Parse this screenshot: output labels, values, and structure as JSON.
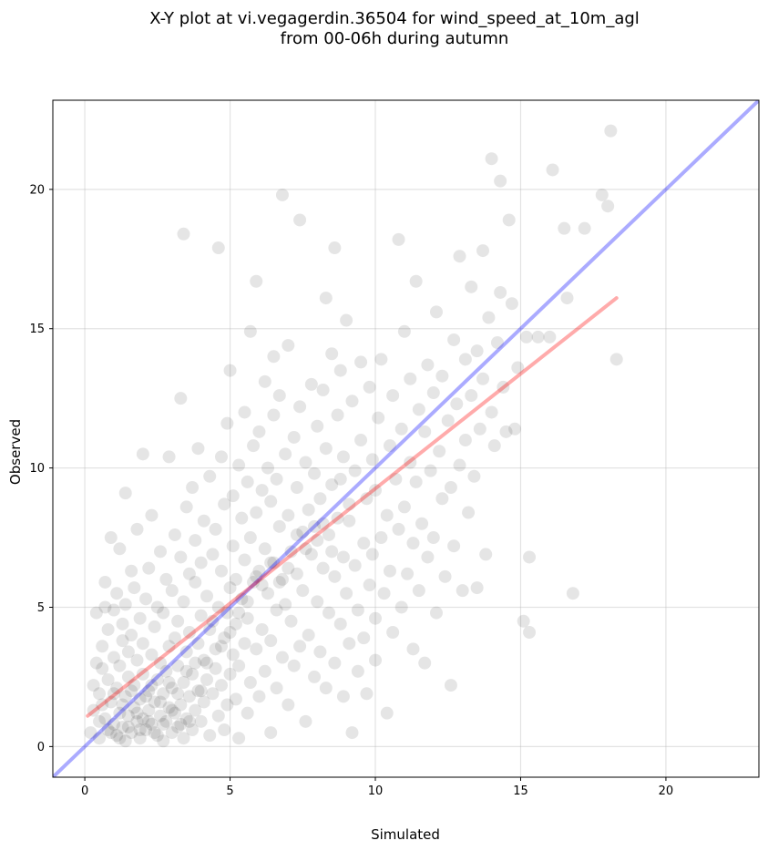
{
  "chart_data": {
    "type": "scatter",
    "title_line1": "X-Y plot at vi.vegagerdin.36504 for wind_speed_at_10m_agl",
    "title_line2": "from 00-06h during autumn",
    "xlabel": "Simulated",
    "ylabel": "Observed",
    "xlim": [
      -1.1,
      23.2
    ],
    "ylim": [
      -1.1,
      23.2
    ],
    "xticks": [
      0,
      5,
      10,
      15,
      20
    ],
    "yticks": [
      0,
      5,
      10,
      15,
      20
    ],
    "grid": true,
    "point_color": "#000000",
    "point_alpha": 0.1,
    "reference_line": {
      "name": "1:1",
      "color": "#0000ff",
      "alpha": 0.33,
      "x": [
        -1.1,
        23.2
      ],
      "y": [
        -1.1,
        23.2
      ]
    },
    "fit_line": {
      "name": "fit",
      "color": "#ff0000",
      "alpha": 0.33,
      "x": [
        0.1,
        18.3
      ],
      "y": [
        1.1,
        16.1
      ]
    },
    "points": [
      [
        0.2,
        0.5
      ],
      [
        0.3,
        1.3
      ],
      [
        0.3,
        2.2
      ],
      [
        0.4,
        3.0
      ],
      [
        0.4,
        4.8
      ],
      [
        0.5,
        0.3
      ],
      [
        0.5,
        1.9
      ],
      [
        0.6,
        2.8
      ],
      [
        0.6,
        3.6
      ],
      [
        0.7,
        1.0
      ],
      [
        0.7,
        5.0
      ],
      [
        0.7,
        5.9
      ],
      [
        0.8,
        0.6
      ],
      [
        0.8,
        2.4
      ],
      [
        0.8,
        4.2
      ],
      [
        0.9,
        7.5
      ],
      [
        0.9,
        1.6
      ],
      [
        1.0,
        0.8
      ],
      [
        1.0,
        3.2
      ],
      [
        1.0,
        4.9
      ],
      [
        1.1,
        0.4
      ],
      [
        1.1,
        2.1
      ],
      [
        1.1,
        5.5
      ],
      [
        1.2,
        1.2
      ],
      [
        1.2,
        2.9
      ],
      [
        1.2,
        7.1
      ],
      [
        1.3,
        0.7
      ],
      [
        1.3,
        3.8
      ],
      [
        1.3,
        4.4
      ],
      [
        1.4,
        0.2
      ],
      [
        1.4,
        1.8
      ],
      [
        1.4,
        5.1
      ],
      [
        1.4,
        9.1
      ],
      [
        1.5,
        1.1
      ],
      [
        1.5,
        2.5
      ],
      [
        1.5,
        3.4
      ],
      [
        1.6,
        0.5
      ],
      [
        1.6,
        4.0
      ],
      [
        1.6,
        6.3
      ],
      [
        1.7,
        1.4
      ],
      [
        1.7,
        2.2
      ],
      [
        1.7,
        5.7
      ],
      [
        1.8,
        0.9
      ],
      [
        1.8,
        3.1
      ],
      [
        1.8,
        7.8
      ],
      [
        1.9,
        0.3
      ],
      [
        1.9,
        1.7
      ],
      [
        1.9,
        4.6
      ],
      [
        2.0,
        1.0
      ],
      [
        2.0,
        2.6
      ],
      [
        2.0,
        3.7
      ],
      [
        2.0,
        10.5
      ],
      [
        2.1,
        0.6
      ],
      [
        2.1,
        5.3
      ],
      [
        2.2,
        1.3
      ],
      [
        2.2,
        2.0
      ],
      [
        2.2,
        6.4
      ],
      [
        2.3,
        0.8
      ],
      [
        2.3,
        3.3
      ],
      [
        2.3,
        8.3
      ],
      [
        2.4,
        1.6
      ],
      [
        2.4,
        4.3
      ],
      [
        2.5,
        0.4
      ],
      [
        2.5,
        2.4
      ],
      [
        2.5,
        5.0
      ],
      [
        2.6,
        1.1
      ],
      [
        2.6,
        3.0
      ],
      [
        2.6,
        7.0
      ],
      [
        2.7,
        0.2
      ],
      [
        2.7,
        1.9
      ],
      [
        2.7,
        4.8
      ],
      [
        2.8,
        0.9
      ],
      [
        2.8,
        2.7
      ],
      [
        2.8,
        6.0
      ],
      [
        2.9,
        1.4
      ],
      [
        2.9,
        3.6
      ],
      [
        2.9,
        10.4
      ],
      [
        3.0,
        0.5
      ],
      [
        3.0,
        2.1
      ],
      [
        3.0,
        5.6
      ],
      [
        3.1,
        1.2
      ],
      [
        3.1,
        3.9
      ],
      [
        3.1,
        7.6
      ],
      [
        3.2,
        0.7
      ],
      [
        3.2,
        2.9
      ],
      [
        3.2,
        4.5
      ],
      [
        3.3,
        1.5
      ],
      [
        3.3,
        6.8
      ],
      [
        3.3,
        12.5
      ],
      [
        3.4,
        0.3
      ],
      [
        3.4,
        2.3
      ],
      [
        3.4,
        5.2
      ],
      [
        3.4,
        18.4
      ],
      [
        3.5,
        1.0
      ],
      [
        3.5,
        3.4
      ],
      [
        3.5,
        8.6
      ],
      [
        3.6,
        1.8
      ],
      [
        3.6,
        4.1
      ],
      [
        3.6,
        6.2
      ],
      [
        3.7,
        0.6
      ],
      [
        3.7,
        2.6
      ],
      [
        3.7,
        9.3
      ],
      [
        3.8,
        1.3
      ],
      [
        3.8,
        5.9
      ],
      [
        3.8,
        7.4
      ],
      [
        3.9,
        2.0
      ],
      [
        3.9,
        3.7
      ],
      [
        3.9,
        10.7
      ],
      [
        4.0,
        0.9
      ],
      [
        4.0,
        4.7
      ],
      [
        4.0,
        6.6
      ],
      [
        4.1,
        1.6
      ],
      [
        4.1,
        3.1
      ],
      [
        4.1,
        8.1
      ],
      [
        4.2,
        2.4
      ],
      [
        4.2,
        5.4
      ],
      [
        4.3,
        0.4
      ],
      [
        4.3,
        4.2
      ],
      [
        4.3,
        9.7
      ],
      [
        4.4,
        1.9
      ],
      [
        4.4,
        6.9
      ],
      [
        4.5,
        2.8
      ],
      [
        4.5,
        3.5
      ],
      [
        4.5,
        7.8
      ],
      [
        4.6,
        1.1
      ],
      [
        4.6,
        5.0
      ],
      [
        4.6,
        17.9
      ],
      [
        4.7,
        2.2
      ],
      [
        4.7,
        6.3
      ],
      [
        4.7,
        10.4
      ],
      [
        4.8,
        0.6
      ],
      [
        4.8,
        3.9
      ],
      [
        4.8,
        8.7
      ],
      [
        4.9,
        1.5
      ],
      [
        4.9,
        4.8
      ],
      [
        4.9,
        11.6
      ],
      [
        5.0,
        2.6
      ],
      [
        5.0,
        5.7
      ],
      [
        5.0,
        13.5
      ],
      [
        5.1,
        3.3
      ],
      [
        5.1,
        7.2
      ],
      [
        5.1,
        9.0
      ],
      [
        5.2,
        1.7
      ],
      [
        5.2,
        4.4
      ],
      [
        5.2,
        6.0
      ],
      [
        5.3,
        0.3
      ],
      [
        5.3,
        2.9
      ],
      [
        5.3,
        10.1
      ],
      [
        5.4,
        5.3
      ],
      [
        5.4,
        8.2
      ],
      [
        5.5,
        3.7
      ],
      [
        5.5,
        6.7
      ],
      [
        5.5,
        12.0
      ],
      [
        5.6,
        1.2
      ],
      [
        5.6,
        4.6
      ],
      [
        5.6,
        9.5
      ],
      [
        5.7,
        2.3
      ],
      [
        5.7,
        7.5
      ],
      [
        5.7,
        14.9
      ],
      [
        5.8,
        5.9
      ],
      [
        5.8,
        10.8
      ],
      [
        5.9,
        3.5
      ],
      [
        5.9,
        8.4
      ],
      [
        5.9,
        16.7
      ],
      [
        6.0,
        1.8
      ],
      [
        6.0,
        6.3
      ],
      [
        6.0,
        11.3
      ],
      [
        6.1,
        4.2
      ],
      [
        6.1,
        9.2
      ],
      [
        6.2,
        2.7
      ],
      [
        6.2,
        7.1
      ],
      [
        6.2,
        13.1
      ],
      [
        6.3,
        5.5
      ],
      [
        6.3,
        10.0
      ],
      [
        6.4,
        0.5
      ],
      [
        6.4,
        3.8
      ],
      [
        6.4,
        8.8
      ],
      [
        6.5,
        6.6
      ],
      [
        6.5,
        11.9
      ],
      [
        6.5,
        14.0
      ],
      [
        6.6,
        2.1
      ],
      [
        6.6,
        4.9
      ],
      [
        6.6,
        9.6
      ],
      [
        6.7,
        7.9
      ],
      [
        6.7,
        12.6
      ],
      [
        6.8,
        3.2
      ],
      [
        6.8,
        6.0
      ],
      [
        6.8,
        19.8
      ],
      [
        6.9,
        5.1
      ],
      [
        6.9,
        10.5
      ],
      [
        7.0,
        1.5
      ],
      [
        7.0,
        8.3
      ],
      [
        7.0,
        14.4
      ],
      [
        7.1,
        4.5
      ],
      [
        7.1,
        7.0
      ],
      [
        7.2,
        2.9
      ],
      [
        7.2,
        11.1
      ],
      [
        7.3,
        6.2
      ],
      [
        7.3,
        9.3
      ],
      [
        7.4,
        3.6
      ],
      [
        7.4,
        12.2
      ],
      [
        7.4,
        18.9
      ],
      [
        7.5,
        5.6
      ],
      [
        7.5,
        7.7
      ],
      [
        7.6,
        0.9
      ],
      [
        7.6,
        10.2
      ],
      [
        7.7,
        4.0
      ],
      [
        7.7,
        8.5
      ],
      [
        7.8,
        6.9
      ],
      [
        7.8,
        13.0
      ],
      [
        7.9,
        2.5
      ],
      [
        7.9,
        9.8
      ],
      [
        8.0,
        5.2
      ],
      [
        8.0,
        7.4
      ],
      [
        8.0,
        11.5
      ],
      [
        8.1,
        3.4
      ],
      [
        8.1,
        8.9
      ],
      [
        8.2,
        6.4
      ],
      [
        8.2,
        12.8
      ],
      [
        8.3,
        2.1
      ],
      [
        8.3,
        10.7
      ],
      [
        8.3,
        16.1
      ],
      [
        8.4,
        4.8
      ],
      [
        8.4,
        7.6
      ],
      [
        8.5,
        9.4
      ],
      [
        8.5,
        14.1
      ],
      [
        8.6,
        3.0
      ],
      [
        8.6,
        6.1
      ],
      [
        8.6,
        17.9
      ],
      [
        8.7,
        11.9
      ],
      [
        8.7,
        8.2
      ],
      [
        8.8,
        4.4
      ],
      [
        8.8,
        13.5
      ],
      [
        8.9,
        1.8
      ],
      [
        8.9,
        6.8
      ],
      [
        8.9,
        10.4
      ],
      [
        9.0,
        5.5
      ],
      [
        9.0,
        15.3
      ],
      [
        9.1,
        3.7
      ],
      [
        9.1,
        8.7
      ],
      [
        9.2,
        0.5
      ],
      [
        9.2,
        12.4
      ],
      [
        9.3,
        6.5
      ],
      [
        9.3,
        9.9
      ],
      [
        9.4,
        2.7
      ],
      [
        9.4,
        4.9
      ],
      [
        9.5,
        11.0
      ],
      [
        9.5,
        13.8
      ],
      [
        9.6,
        7.3
      ],
      [
        9.6,
        3.9
      ],
      [
        9.7,
        8.9
      ],
      [
        9.7,
        1.9
      ],
      [
        9.8,
        5.8
      ],
      [
        9.8,
        12.9
      ],
      [
        9.9,
        10.3
      ],
      [
        9.9,
        6.9
      ],
      [
        10.0,
        4.6
      ],
      [
        10.0,
        9.2
      ],
      [
        10.0,
        3.1
      ],
      [
        10.1,
        11.8
      ],
      [
        10.2,
        7.5
      ],
      [
        10.2,
        13.9
      ],
      [
        10.3,
        5.5
      ],
      [
        10.4,
        8.3
      ],
      [
        10.4,
        1.2
      ],
      [
        10.5,
        10.8
      ],
      [
        10.5,
        6.3
      ],
      [
        10.6,
        12.6
      ],
      [
        10.6,
        4.1
      ],
      [
        10.7,
        9.6
      ],
      [
        10.8,
        7.8
      ],
      [
        10.8,
        18.2
      ],
      [
        10.9,
        5.0
      ],
      [
        10.9,
        11.4
      ],
      [
        11.0,
        14.9
      ],
      [
        11.0,
        8.6
      ],
      [
        11.1,
        6.2
      ],
      [
        11.2,
        10.2
      ],
      [
        11.2,
        13.2
      ],
      [
        11.3,
        3.5
      ],
      [
        11.3,
        7.3
      ],
      [
        11.4,
        9.5
      ],
      [
        11.4,
        16.7
      ],
      [
        11.5,
        12.1
      ],
      [
        11.5,
        5.6
      ],
      [
        11.6,
        8.0
      ],
      [
        11.7,
        11.3
      ],
      [
        11.7,
        3.0
      ],
      [
        11.8,
        13.7
      ],
      [
        11.8,
        6.8
      ],
      [
        11.9,
        9.9
      ],
      [
        12.0,
        12.7
      ],
      [
        12.0,
        7.5
      ],
      [
        12.1,
        15.6
      ],
      [
        12.1,
        4.8
      ],
      [
        12.2,
        10.6
      ],
      [
        12.3,
        8.9
      ],
      [
        12.3,
        13.3
      ],
      [
        12.4,
        6.1
      ],
      [
        12.5,
        11.7
      ],
      [
        12.6,
        2.2
      ],
      [
        12.6,
        9.3
      ],
      [
        12.7,
        14.6
      ],
      [
        12.7,
        7.2
      ],
      [
        12.8,
        12.3
      ],
      [
        12.9,
        10.1
      ],
      [
        12.9,
        17.6
      ],
      [
        13.0,
        5.6
      ],
      [
        13.1,
        11.0
      ],
      [
        13.1,
        13.9
      ],
      [
        13.2,
        8.4
      ],
      [
        13.3,
        16.5
      ],
      [
        13.3,
        12.6
      ],
      [
        13.4,
        9.7
      ],
      [
        13.5,
        14.2
      ],
      [
        13.5,
        5.7
      ],
      [
        13.6,
        11.4
      ],
      [
        13.7,
        17.8
      ],
      [
        13.7,
        13.2
      ],
      [
        13.8,
        6.9
      ],
      [
        13.9,
        15.4
      ],
      [
        14.0,
        12.0
      ],
      [
        14.0,
        21.1
      ],
      [
        14.1,
        10.8
      ],
      [
        14.2,
        14.5
      ],
      [
        14.3,
        16.3
      ],
      [
        14.3,
        20.3
      ],
      [
        14.4,
        12.9
      ],
      [
        14.5,
        11.3
      ],
      [
        14.6,
        18.9
      ],
      [
        14.7,
        15.9
      ],
      [
        14.8,
        11.4
      ],
      [
        14.9,
        13.6
      ],
      [
        15.1,
        4.5
      ],
      [
        15.2,
        14.7
      ],
      [
        15.3,
        6.8
      ],
      [
        15.3,
        4.1
      ],
      [
        15.6,
        14.7
      ],
      [
        16.0,
        14.7
      ],
      [
        16.1,
        20.7
      ],
      [
        16.5,
        18.6
      ],
      [
        16.6,
        16.1
      ],
      [
        16.8,
        5.5
      ],
      [
        17.2,
        18.6
      ],
      [
        17.8,
        19.8
      ],
      [
        18.0,
        19.4
      ],
      [
        18.1,
        22.1
      ],
      [
        18.3,
        13.9
      ],
      [
        0.5,
        0.9
      ],
      [
        0.6,
        1.5
      ],
      [
        0.9,
        0.5
      ],
      [
        1.0,
        1.9
      ],
      [
        1.2,
        0.3
      ],
      [
        1.3,
        1.5
      ],
      [
        1.5,
        0.7
      ],
      [
        1.6,
        2.0
      ],
      [
        1.8,
        1.2
      ],
      [
        1.9,
        0.6
      ],
      [
        2.1,
        1.8
      ],
      [
        2.2,
        0.9
      ],
      [
        2.3,
        2.2
      ],
      [
        2.4,
        0.5
      ],
      [
        2.6,
        1.6
      ],
      [
        2.7,
        0.8
      ],
      [
        2.9,
        2.3
      ],
      [
        3.0,
        1.3
      ],
      [
        3.2,
        1.9
      ],
      [
        3.3,
        0.8
      ],
      [
        3.5,
        2.7
      ],
      [
        3.6,
        0.9
      ],
      [
        3.8,
        3.0
      ],
      [
        4.0,
        2.0
      ],
      [
        4.2,
        3.0
      ],
      [
        4.4,
        4.5
      ],
      [
        4.7,
        3.6
      ],
      [
        5.0,
        4.1
      ],
      [
        5.3,
        4.8
      ],
      [
        5.6,
        5.2
      ],
      [
        5.9,
        6.1
      ],
      [
        6.1,
        5.8
      ],
      [
        6.4,
        6.6
      ],
      [
        6.7,
        5.9
      ],
      [
        7.0,
        6.4
      ],
      [
        7.3,
        7.6
      ],
      [
        7.6,
        7.1
      ],
      [
        7.9,
        7.9
      ],
      [
        8.2,
        8.0
      ],
      [
        8.5,
        7.0
      ],
      [
        8.8,
        9.6
      ],
      [
        9.1,
        8.1
      ]
    ]
  }
}
